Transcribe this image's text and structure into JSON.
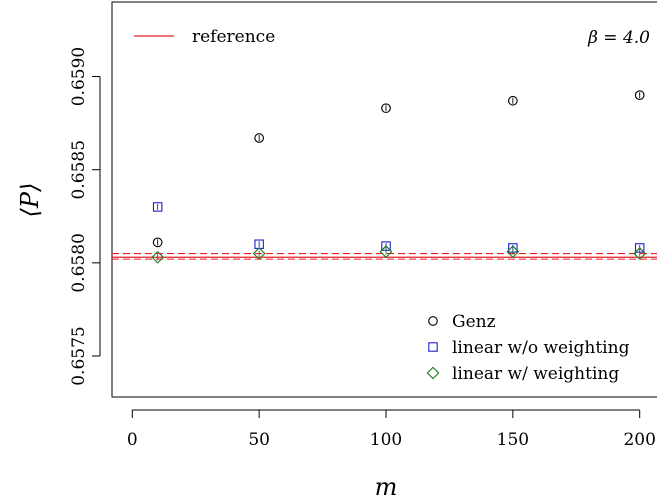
{
  "chart_data": {
    "type": "scatter",
    "xlabel": "m",
    "ylabel": "⟨P⟩",
    "xlim": [
      -8,
      208
    ],
    "ylim": [
      0.65728,
      0.6594
    ],
    "x_ticks": [
      0,
      50,
      100,
      150,
      200
    ],
    "x_tick_labels": [
      "0",
      "50",
      "100",
      "150",
      "200"
    ],
    "y_ticks": [
      0.6575,
      0.658,
      0.6585,
      0.659
    ],
    "y_tick_labels": [
      "0.6575",
      "0.6580",
      "0.6585",
      "0.6590"
    ],
    "annotation": "β = 4.0",
    "reference": {
      "name": "reference",
      "color": "#e8202a",
      "value": 0.65803,
      "band": [
        0.65802,
        0.65805
      ]
    },
    "series": [
      {
        "name": "Genz",
        "marker": "circle",
        "color": "#000000",
        "x": [
          10,
          50,
          100,
          150,
          200
        ],
        "y": [
          0.65811,
          0.65867,
          0.65883,
          0.65887,
          0.6589
        ]
      },
      {
        "name": "linear w/o weighting",
        "marker": "square",
        "color": "#1f1fcc",
        "x": [
          10,
          50,
          100,
          150,
          200
        ],
        "y": [
          0.6583,
          0.6581,
          0.65809,
          0.65808,
          0.65808
        ]
      },
      {
        "name": "linear w/ weighting",
        "marker": "diamond",
        "color": "#1a7a1a",
        "x": [
          10,
          50,
          100,
          150,
          200
        ],
        "y": [
          0.65803,
          0.65805,
          0.65806,
          0.65806,
          0.65805
        ]
      }
    ],
    "legend_position": "bottom-right",
    "grid": false
  }
}
